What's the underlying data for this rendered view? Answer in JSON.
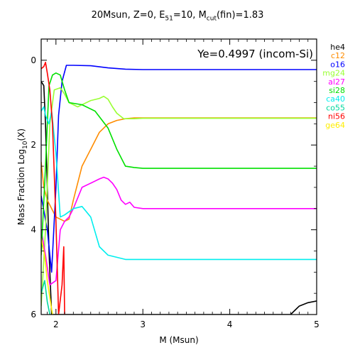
{
  "title": {
    "prefix": "20Msun, Z=0, E",
    "e_sub": "51",
    "mid": "=10, M",
    "m_sub": "cut",
    "suffix": "(fin)=1.83"
  },
  "annotation": "Ye=0.4997 (incom-Si)",
  "chart_data": {
    "type": "line",
    "xlabel": "M (Msun)",
    "ylabel_prefix": "Mass Fraction Log",
    "ylabel_sub": "10",
    "ylabel_suffix": "(X)",
    "xlim": [
      1.83,
      5
    ],
    "ylim": [
      -6,
      0.5
    ],
    "x_ticks": [
      2,
      3,
      4,
      5
    ],
    "y_ticks": [
      0,
      -2,
      -4,
      -6
    ],
    "y_tick_labels": [
      "0",
      "2",
      "4",
      "6"
    ],
    "grid": false,
    "legend_position": "right-outside",
    "series": [
      {
        "name": "he4",
        "color": "#000000",
        "points": [
          [
            1.83,
            -0.5
          ],
          [
            1.86,
            -0.6
          ],
          [
            1.88,
            -1.5
          ],
          [
            1.9,
            -3
          ],
          [
            1.92,
            -4.5
          ],
          [
            1.95,
            -6.0
          ],
          [
            4.7,
            -6.0
          ],
          [
            4.75,
            -5.9
          ],
          [
            4.8,
            -5.8
          ],
          [
            4.9,
            -5.72
          ],
          [
            5.0,
            -5.68
          ]
        ]
      },
      {
        "name": "c12",
        "color": "#ff8c00",
        "points": [
          [
            1.83,
            -2.4
          ],
          [
            1.86,
            -3.0
          ],
          [
            1.9,
            -3.3
          ],
          [
            1.95,
            -3.5
          ],
          [
            2.0,
            -3.7
          ],
          [
            2.05,
            -3.75
          ],
          [
            2.1,
            -3.8
          ],
          [
            2.15,
            -3.75
          ],
          [
            2.2,
            -3.3
          ],
          [
            2.3,
            -2.5
          ],
          [
            2.4,
            -2.1
          ],
          [
            2.5,
            -1.7
          ],
          [
            2.6,
            -1.5
          ],
          [
            2.7,
            -1.42
          ],
          [
            2.8,
            -1.38
          ],
          [
            2.9,
            -1.36
          ],
          [
            3.0,
            -1.36
          ],
          [
            5.0,
            -1.36
          ]
        ]
      },
      {
        "name": "o16",
        "color": "#0000ff",
        "points": [
          [
            1.83,
            -3.2
          ],
          [
            1.9,
            -4.0
          ],
          [
            1.95,
            -5.0
          ],
          [
            2.0,
            -3.0
          ],
          [
            2.03,
            -1.3
          ],
          [
            2.07,
            -0.5
          ],
          [
            2.12,
            -0.12
          ],
          [
            2.2,
            -0.12
          ],
          [
            2.4,
            -0.13
          ],
          [
            2.6,
            -0.18
          ],
          [
            2.8,
            -0.21
          ],
          [
            3.0,
            -0.22
          ],
          [
            5.0,
            -0.22
          ]
        ]
      },
      {
        "name": "mg24",
        "color": "#99ff33",
        "points": [
          [
            1.83,
            -5.8
          ],
          [
            1.88,
            -4.0
          ],
          [
            1.93,
            -1.5
          ],
          [
            1.98,
            -0.7
          ],
          [
            2.05,
            -0.65
          ],
          [
            2.1,
            -0.8
          ],
          [
            2.15,
            -1.0
          ],
          [
            2.25,
            -1.1
          ],
          [
            2.4,
            -0.95
          ],
          [
            2.5,
            -0.9
          ],
          [
            2.55,
            -0.85
          ],
          [
            2.6,
            -0.92
          ],
          [
            2.65,
            -1.1
          ],
          [
            2.7,
            -1.25
          ],
          [
            2.78,
            -1.38
          ],
          [
            2.9,
            -1.38
          ],
          [
            3.0,
            -1.37
          ],
          [
            5.0,
            -1.37
          ]
        ]
      },
      {
        "name": "al27",
        "color": "#ff00ff",
        "points": [
          [
            1.83,
            -4.0
          ],
          [
            1.88,
            -4.6
          ],
          [
            1.93,
            -5.3
          ],
          [
            2.0,
            -5.2
          ],
          [
            2.05,
            -4.0
          ],
          [
            2.1,
            -3.8
          ],
          [
            2.15,
            -3.7
          ],
          [
            2.2,
            -3.5
          ],
          [
            2.3,
            -3.0
          ],
          [
            2.4,
            -2.9
          ],
          [
            2.5,
            -2.8
          ],
          [
            2.55,
            -2.76
          ],
          [
            2.6,
            -2.8
          ],
          [
            2.65,
            -2.9
          ],
          [
            2.7,
            -3.05
          ],
          [
            2.75,
            -3.3
          ],
          [
            2.8,
            -3.4
          ],
          [
            2.85,
            -3.35
          ],
          [
            2.9,
            -3.47
          ],
          [
            3.0,
            -3.5
          ],
          [
            5.0,
            -3.5
          ]
        ]
      },
      {
        "name": "si28",
        "color": "#00e000",
        "points": [
          [
            1.83,
            -4.6
          ],
          [
            1.88,
            -2.5
          ],
          [
            1.92,
            -0.6
          ],
          [
            1.96,
            -0.35
          ],
          [
            2.0,
            -0.3
          ],
          [
            2.05,
            -0.35
          ],
          [
            2.1,
            -0.7
          ],
          [
            2.15,
            -1.0
          ],
          [
            2.3,
            -1.05
          ],
          [
            2.45,
            -1.2
          ],
          [
            2.6,
            -1.6
          ],
          [
            2.7,
            -2.1
          ],
          [
            2.8,
            -2.5
          ],
          [
            2.9,
            -2.53
          ],
          [
            3.0,
            -2.55
          ],
          [
            5.0,
            -2.55
          ]
        ]
      },
      {
        "name": "ca40",
        "color": "#00eeee",
        "points": [
          [
            1.83,
            -1.2
          ],
          [
            1.86,
            -1.1
          ],
          [
            1.88,
            -1.3
          ],
          [
            1.92,
            -1.5
          ],
          [
            1.95,
            -1.2
          ],
          [
            2.0,
            -2.2
          ],
          [
            2.05,
            -3.7
          ],
          [
            2.1,
            -3.65
          ],
          [
            2.2,
            -3.5
          ],
          [
            2.3,
            -3.45
          ],
          [
            2.4,
            -3.7
          ],
          [
            2.5,
            -4.4
          ],
          [
            2.6,
            -4.6
          ],
          [
            2.7,
            -4.65
          ],
          [
            2.8,
            -4.7
          ],
          [
            3.0,
            -4.7
          ],
          [
            5.0,
            -4.7
          ]
        ]
      },
      {
        "name": "co55",
        "color": "#00d8a0",
        "points": [
          [
            1.83,
            -5.5
          ],
          [
            1.87,
            -5.2
          ],
          [
            1.9,
            -5.7
          ],
          [
            1.93,
            -6.0
          ]
        ]
      },
      {
        "name": "ni56",
        "color": "#ff0000",
        "points": [
          [
            1.83,
            -0.2
          ],
          [
            1.86,
            -0.15
          ],
          [
            1.88,
            -0.05
          ],
          [
            1.9,
            -0.3
          ],
          [
            1.93,
            -0.7
          ],
          [
            1.96,
            -1.5
          ],
          [
            2.0,
            -3.8
          ],
          [
            2.03,
            -6.0
          ],
          [
            2.07,
            -5.3
          ],
          [
            2.09,
            -4.4
          ],
          [
            2.1,
            -6.0
          ]
        ]
      },
      {
        "name": "ge64",
        "color": "#ffee00",
        "points": [
          [
            1.83,
            -4.2
          ],
          [
            1.87,
            -4.6
          ],
          [
            1.9,
            -5.2
          ],
          [
            1.93,
            -5.6
          ],
          [
            1.96,
            -6.0
          ]
        ]
      }
    ]
  }
}
